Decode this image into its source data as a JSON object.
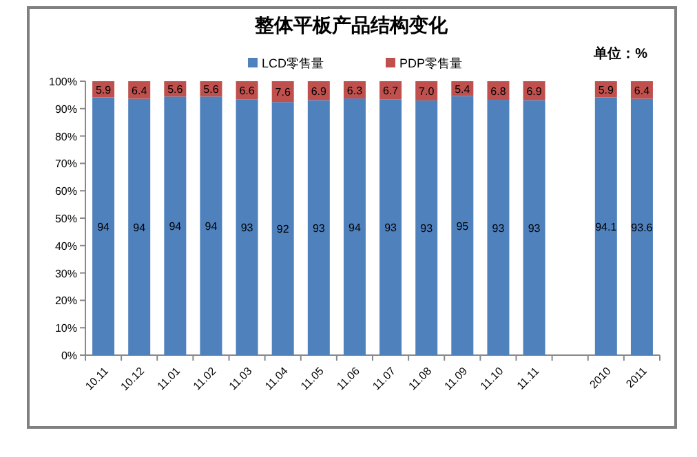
{
  "chart_data": {
    "type": "bar",
    "stacked": true,
    "title": "整体平板产品结构变化",
    "annotations": [
      "单位：%"
    ],
    "categories": [
      "10.11",
      "10.12",
      "11.01",
      "11.02",
      "11.03",
      "11.04",
      "11.05",
      "11.06",
      "11.07",
      "11.08",
      "11.09",
      "11.10",
      "11.11",
      null,
      "2010",
      "2011"
    ],
    "series": [
      {
        "name": "LCD零售量",
        "color": "#4f81bd",
        "values": [
          94.1,
          93.6,
          94.4,
          94.4,
          93.4,
          92.4,
          93.1,
          93.7,
          93.3,
          93.0,
          94.6,
          93.2,
          93.1,
          null,
          94.1,
          93.6
        ],
        "value_labels": [
          "94",
          "94",
          "94",
          "94",
          "93",
          "92",
          "93",
          "94",
          "93",
          "93",
          "95",
          "93",
          "93",
          null,
          "94.1",
          "93.6"
        ]
      },
      {
        "name": "PDP零售量",
        "color": "#c0504d",
        "values": [
          5.9,
          6.4,
          5.6,
          5.6,
          6.6,
          7.6,
          6.9,
          6.3,
          6.7,
          7.0,
          5.4,
          6.8,
          6.9,
          null,
          5.9,
          6.4
        ],
        "value_labels": [
          "5.9",
          "6.4",
          "5.6",
          "5.6",
          "6.6",
          "7.6",
          "6.9",
          "6.3",
          "6.7",
          "7.0",
          "5.4",
          "6.8",
          "6.9",
          null,
          "5.9",
          "6.4"
        ]
      }
    ],
    "ylim": [
      0,
      100
    ],
    "yticks": [
      {
        "value": 0,
        "label": "0%"
      },
      {
        "value": 10,
        "label": "10%"
      },
      {
        "value": 20,
        "label": "20%"
      },
      {
        "value": 30,
        "label": "30%"
      },
      {
        "value": 40,
        "label": "40%"
      },
      {
        "value": 50,
        "label": "50%"
      },
      {
        "value": 60,
        "label": "60%"
      },
      {
        "value": 70,
        "label": "70%"
      },
      {
        "value": 80,
        "label": "80%"
      },
      {
        "value": 90,
        "label": "90%"
      },
      {
        "value": 100,
        "label": "100%"
      }
    ],
    "legend": "top",
    "grid": false
  }
}
